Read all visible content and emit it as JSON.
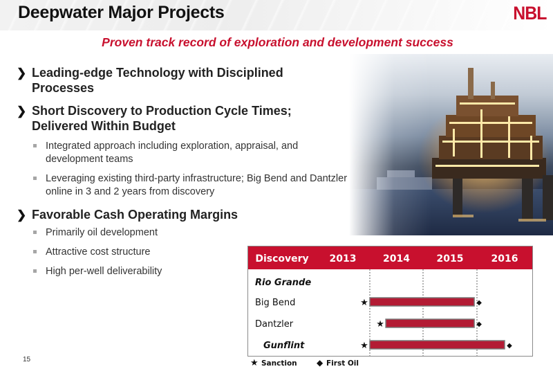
{
  "header": {
    "title": "Deepwater Major Projects",
    "logo_text": "NBL",
    "subtitle": "Proven track record of exploration and development success"
  },
  "bullets": [
    {
      "text": "Leading-edge Technology with Disciplined Processes",
      "subs": []
    },
    {
      "text": "Short Discovery to Production Cycle Times; Delivered Within Budget",
      "subs": [
        "Integrated approach including exploration, appraisal, and development teams",
        "Leveraging existing third-party infrastructure; Big Bend and Dantzler online in 3 and 2 years from discovery"
      ]
    },
    {
      "text": "Favorable Cash Operating Margins",
      "subs": [
        "Primarily oil development",
        "Attractive cost structure",
        "High per-well deliverability"
      ]
    }
  ],
  "page_number": "15",
  "photo": {
    "subject": "offshore-platform-photo"
  },
  "chart_data": {
    "type": "table",
    "columns": [
      "Discovery",
      "2013",
      "2014",
      "2015",
      "2016"
    ],
    "years": [
      2013,
      2014,
      2015,
      2016
    ],
    "rows": [
      {
        "name": "Rio Grande",
        "style": "bold-italic",
        "sanction": null,
        "first_oil": null
      },
      {
        "name": "Big Bend",
        "style": "normal",
        "sanction": 2014.0,
        "first_oil": 2015.95
      },
      {
        "name": "Dantzler",
        "style": "normal",
        "sanction": 2014.3,
        "first_oil": 2015.95
      },
      {
        "name": "Gunflint",
        "style": "bold-italic",
        "sanction": 2014.0,
        "first_oil": 2016.5
      }
    ],
    "legend": {
      "sanction": "Sanction",
      "first_oil": "First Oil"
    },
    "colors": {
      "header_bg": "#c8102e",
      "bar": "#b31b34",
      "bar_border": "#7a7a7a"
    }
  }
}
